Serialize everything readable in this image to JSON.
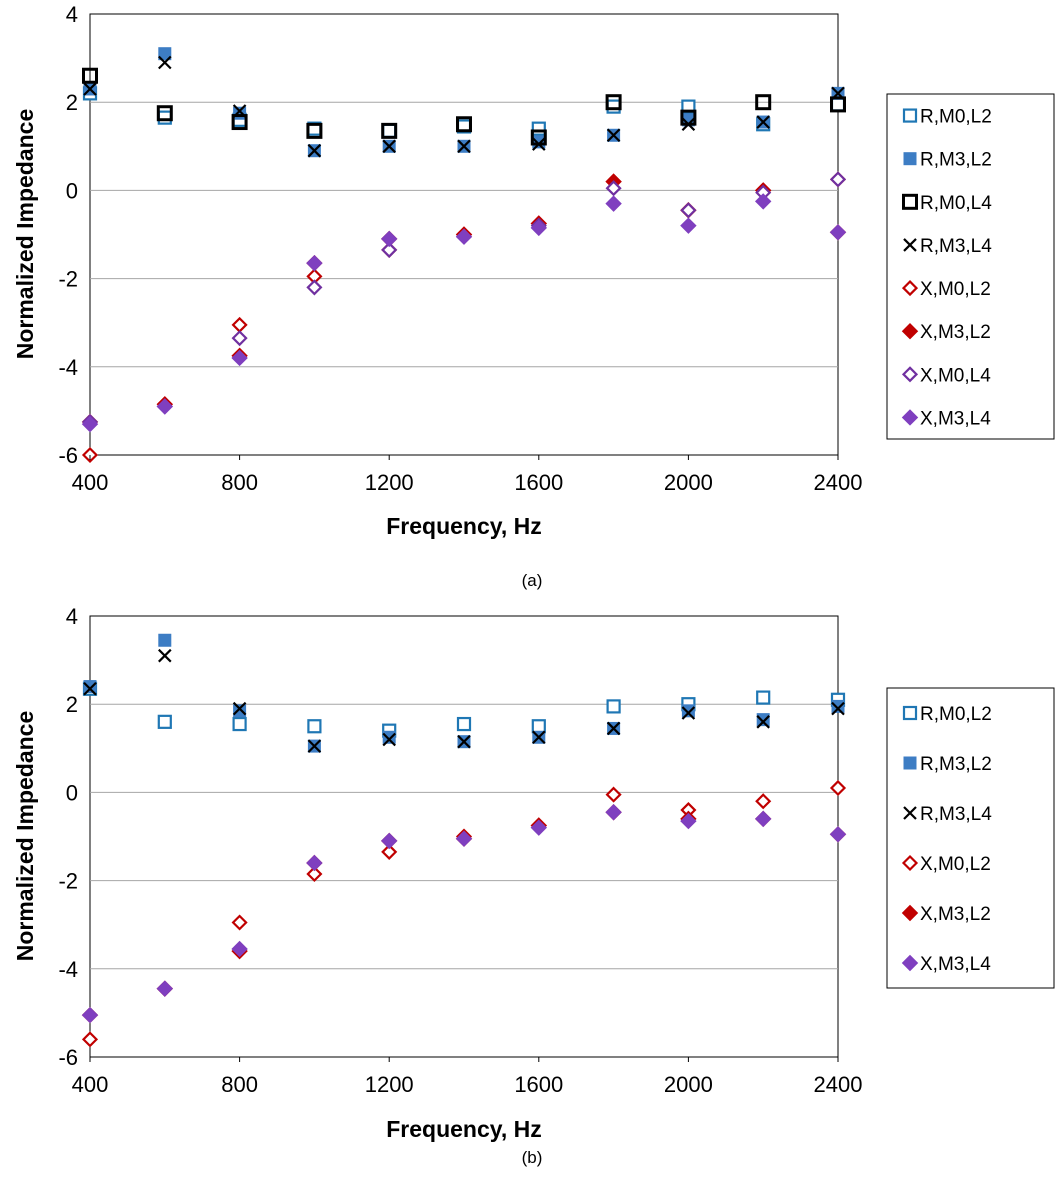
{
  "colors": {
    "blue": "#1f77b4",
    "blue_fill": "#3d7dc4",
    "black": "#000000",
    "red": "#c00000",
    "purple": "#7030a0",
    "purple_fill": "#7f3fbf",
    "grid": "#a6a6a6"
  },
  "chart_data": [
    {
      "type": "scatter",
      "caption": "(a)",
      "xlabel": "Frequency, Hz",
      "ylabel": "Normalized Impedance",
      "xlim": [
        400,
        2400
      ],
      "ylim": [
        -6,
        4
      ],
      "xticks": [
        400,
        800,
        1200,
        1600,
        2000,
        2400
      ],
      "yticks": [
        -6,
        -4,
        -2,
        0,
        2,
        4
      ],
      "grid": "horizontal",
      "legend_position": "right",
      "series": [
        {
          "name": "R,M0,L2",
          "marker": "square-open",
          "color": "blue",
          "x": [
            400,
            600,
            800,
            1000,
            1200,
            1400,
            1600,
            1800,
            2000,
            2200,
            2400
          ],
          "y": [
            2.2,
            1.65,
            1.6,
            1.4,
            1.35,
            1.45,
            1.4,
            1.9,
            1.9,
            1.5,
            1.95
          ]
        },
        {
          "name": "R,M3,L2",
          "marker": "square-filled",
          "color": "blue_fill",
          "x": [
            400,
            600,
            800,
            1000,
            1200,
            1400,
            1600,
            1800,
            2000,
            2200,
            2400
          ],
          "y": [
            2.3,
            3.1,
            1.75,
            0.9,
            1.0,
            1.0,
            1.1,
            1.25,
            1.6,
            1.55,
            2.2
          ]
        },
        {
          "name": "R,M0,L4",
          "marker": "square-open-bold",
          "color": "black",
          "x": [
            400,
            600,
            800,
            1000,
            1200,
            1400,
            1600,
            1800,
            2000,
            2200,
            2400
          ],
          "y": [
            2.6,
            1.75,
            1.55,
            1.35,
            1.35,
            1.5,
            1.2,
            2.0,
            1.65,
            2.0,
            1.95
          ]
        },
        {
          "name": "R,M3,L4",
          "marker": "x",
          "color": "black",
          "x": [
            400,
            600,
            800,
            1000,
            1200,
            1400,
            1600,
            1800,
            2000,
            2200,
            2400
          ],
          "y": [
            2.3,
            2.9,
            1.8,
            0.9,
            1.0,
            1.0,
            1.05,
            1.25,
            1.5,
            1.55,
            2.2
          ]
        },
        {
          "name": "X,M0,L2",
          "marker": "diamond-open",
          "color": "red",
          "x": [
            400,
            600,
            800,
            1000,
            1200,
            1400,
            1600,
            1800,
            2000,
            2200,
            2400
          ],
          "y": [
            -6.0,
            -4.85,
            -3.05,
            -1.95,
            -1.35,
            -1.0,
            -0.75,
            0.2,
            -0.45,
            0.0,
            0.25
          ]
        },
        {
          "name": "X,M3,L2",
          "marker": "diamond-filled",
          "color": "red",
          "x": [
            400,
            600,
            800,
            1000,
            1200,
            1400,
            1600,
            1800,
            2000,
            2200,
            2400
          ],
          "y": [
            -5.25,
            -4.85,
            -3.75,
            -1.65,
            -1.1,
            -1.0,
            -0.75,
            0.2,
            -0.45,
            0.0,
            -0.95
          ]
        },
        {
          "name": "X,M0,L4",
          "marker": "diamond-open",
          "color": "purple",
          "x": [
            400,
            600,
            800,
            1000,
            1200,
            1400,
            1600,
            1800,
            2000,
            2200,
            2400
          ],
          "y": [
            -5.25,
            -4.9,
            -3.35,
            -2.2,
            -1.35,
            -1.05,
            -0.8,
            0.05,
            -0.45,
            -0.05,
            0.25
          ]
        },
        {
          "name": "X,M3,L4",
          "marker": "diamond-filled",
          "color": "purple_fill",
          "x": [
            400,
            600,
            800,
            1000,
            1200,
            1400,
            1600,
            1800,
            2000,
            2200,
            2400
          ],
          "y": [
            -5.3,
            -4.9,
            -3.8,
            -1.65,
            -1.1,
            -1.05,
            -0.85,
            -0.3,
            -0.8,
            -0.25,
            -0.95
          ]
        }
      ]
    },
    {
      "type": "scatter",
      "caption": "(b)",
      "xlabel": "Frequency, Hz",
      "ylabel": "Normalized Impedance",
      "xlim": [
        400,
        2400
      ],
      "ylim": [
        -6,
        4
      ],
      "xticks": [
        400,
        800,
        1200,
        1600,
        2000,
        2400
      ],
      "yticks": [
        -6,
        -4,
        -2,
        0,
        2,
        4
      ],
      "grid": "horizontal",
      "legend_position": "right",
      "series": [
        {
          "name": "R,M0,L2",
          "marker": "square-open",
          "color": "blue",
          "x": [
            400,
            600,
            800,
            1000,
            1200,
            1400,
            1600,
            1800,
            2000,
            2200,
            2400
          ],
          "y": [
            2.35,
            1.6,
            1.55,
            1.5,
            1.4,
            1.55,
            1.5,
            1.95,
            2.0,
            2.15,
            2.1
          ]
        },
        {
          "name": "R,M3,L2",
          "marker": "square-filled",
          "color": "blue_fill",
          "x": [
            400,
            600,
            800,
            1000,
            1200,
            1400,
            1600,
            1800,
            2000,
            2200,
            2400
          ],
          "y": [
            2.4,
            3.45,
            1.85,
            1.05,
            1.25,
            1.15,
            1.25,
            1.45,
            1.85,
            1.65,
            1.95
          ]
        },
        {
          "name": "R,M3,L4",
          "marker": "x",
          "color": "black",
          "x": [
            400,
            600,
            800,
            1000,
            1200,
            1400,
            1600,
            1800,
            2000,
            2200,
            2400
          ],
          "y": [
            2.35,
            3.1,
            1.9,
            1.05,
            1.2,
            1.15,
            1.25,
            1.45,
            1.8,
            1.6,
            1.9
          ]
        },
        {
          "name": "X,M0,L2",
          "marker": "diamond-open",
          "color": "red",
          "x": [
            400,
            600,
            800,
            1000,
            1200,
            1400,
            1600,
            1800,
            2000,
            2200,
            2400
          ],
          "y": [
            -5.6,
            -4.45,
            -2.95,
            -1.85,
            -1.35,
            -1.0,
            -0.75,
            -0.05,
            -0.4,
            -0.2,
            0.1
          ]
        },
        {
          "name": "X,M3,L2",
          "marker": "diamond-filled",
          "color": "red",
          "x": [
            400,
            600,
            800,
            1000,
            1200,
            1400,
            1600,
            1800,
            2000,
            2200,
            2400
          ],
          "y": [
            -5.05,
            -4.45,
            -3.6,
            -1.6,
            -1.1,
            -1.05,
            -0.75,
            -0.45,
            -0.6,
            -0.6,
            -0.95
          ]
        },
        {
          "name": "X,M3,L4",
          "marker": "diamond-filled",
          "color": "purple_fill",
          "x": [
            400,
            600,
            800,
            1000,
            1200,
            1400,
            1600,
            1800,
            2000,
            2200,
            2400
          ],
          "y": [
            -5.05,
            -4.45,
            -3.55,
            -1.6,
            -1.1,
            -1.05,
            -0.8,
            -0.45,
            -0.65,
            -0.6,
            -0.95
          ]
        }
      ]
    }
  ]
}
